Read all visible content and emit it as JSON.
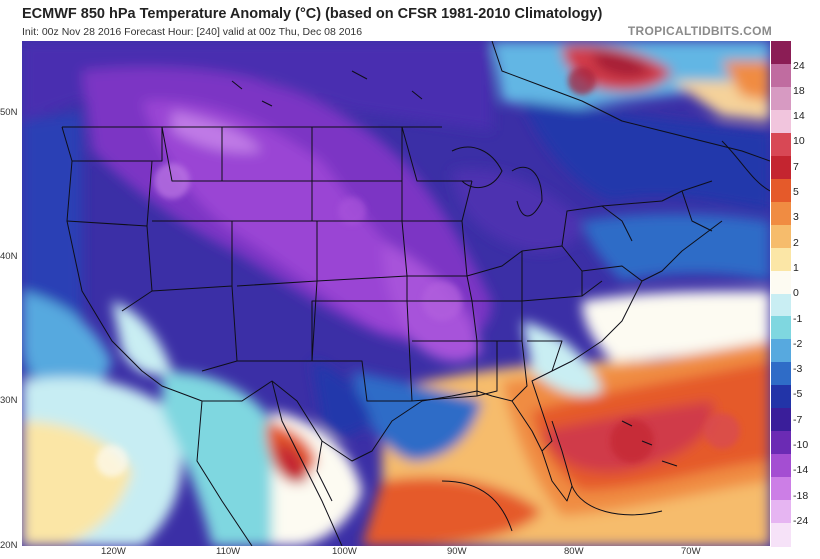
{
  "header": {
    "title": "ECMWF 850 hPa Temperature Anomaly (°C) (based on CFSR 1981-2010 Climatology)",
    "subtitle": "Init: 00z Nov 28 2016   Forecast Hour: [240]   valid at 00z Thu, Dec 08 2016",
    "brand": "TROPICALTIDBITS.COM"
  },
  "map": {
    "lat_labels": [
      "50N",
      "40N",
      "30N",
      "20N"
    ],
    "lon_labels": [
      "120W",
      "110W",
      "100W",
      "90W",
      "80W",
      "70W"
    ]
  },
  "colorbar": {
    "labels": [
      "24",
      "18",
      "14",
      "10",
      "7",
      "5",
      "3",
      "2",
      "1",
      "0",
      "-1",
      "-2",
      "-3",
      "-5",
      "-7",
      "-10",
      "-14",
      "-18",
      "-24"
    ],
    "colors": [
      "#8b1d55",
      "#c06ca0",
      "#d79ac2",
      "#f1c5dd",
      "#d84855",
      "#c42530",
      "#e55a2a",
      "#f08c42",
      "#f6bc6c",
      "#fbe6a6",
      "#fdfbf2",
      "#c9eef3",
      "#7fd7e0",
      "#57a9df",
      "#2f6cc7",
      "#2234a8",
      "#3a1e9a",
      "#6b2bb4",
      "#a44ed2",
      "#cc7ee6",
      "#e6b5f2",
      "#f6e2f8"
    ]
  }
}
